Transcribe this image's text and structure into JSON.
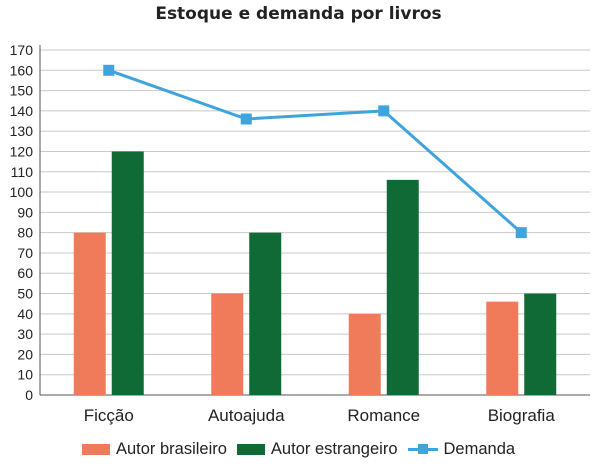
{
  "chart_data": {
    "type": "bar",
    "title": "Estoque e demanda por livros",
    "categories": [
      "Ficção",
      "Autoajuda",
      "Romance",
      "Biografia"
    ],
    "series": [
      {
        "name": "Autor brasileiro",
        "kind": "bar",
        "color": "#f07b5b",
        "values": [
          80,
          50,
          40,
          46
        ]
      },
      {
        "name": "Autor estrangeiro",
        "kind": "bar",
        "color": "#0f6a36",
        "values": [
          120,
          80,
          106,
          50
        ]
      },
      {
        "name": "Demanda",
        "kind": "line",
        "color": "#3fa4dc",
        "values": [
          160,
          136,
          140,
          80
        ]
      }
    ],
    "ylim": [
      0,
      170
    ],
    "yticks": [
      "0",
      "10",
      "20",
      "30",
      "40",
      "50",
      "60",
      "70",
      "80",
      "90",
      "100",
      "110",
      "120",
      "130",
      "140",
      "150",
      "160",
      "170"
    ],
    "xlabel": "",
    "ylabel": "",
    "grid": true,
    "legend_position": "bottom",
    "colors": {
      "grid": "#c8c8c8",
      "axis": "#555555"
    }
  }
}
